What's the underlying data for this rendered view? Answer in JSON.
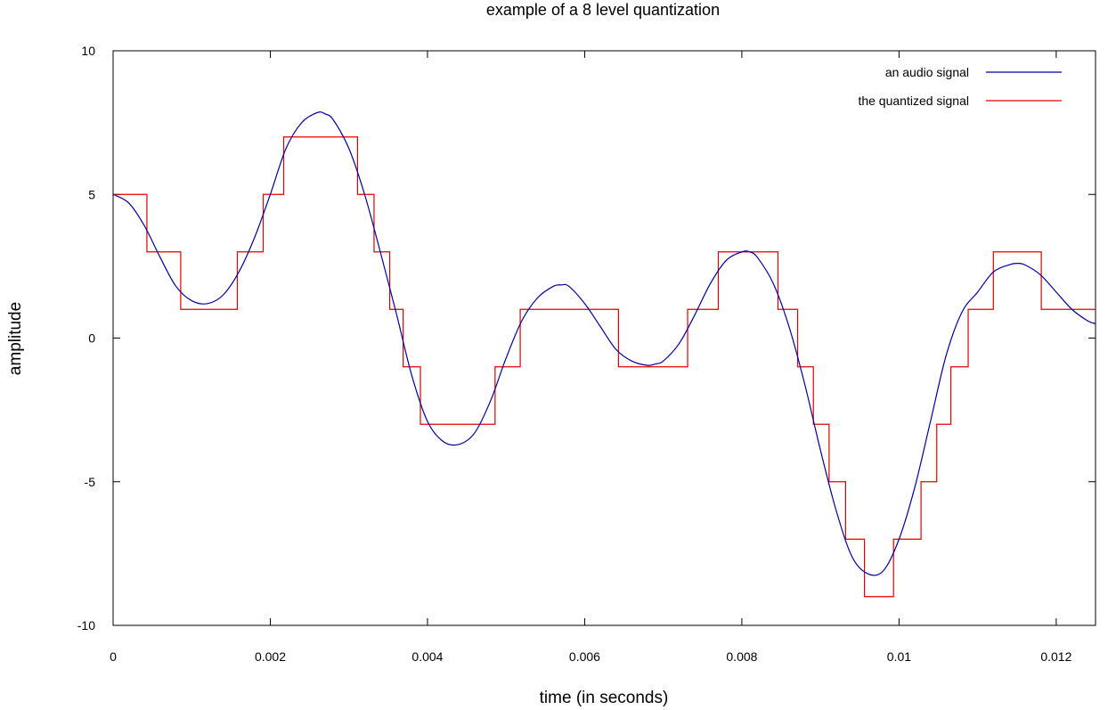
{
  "chart_data": {
    "type": "line",
    "title": "example of a 8 level quantization",
    "xlabel": "time (in seconds)",
    "ylabel": "amplitude",
    "xlim": [
      0,
      0.0125
    ],
    "ylim": [
      -10,
      10
    ],
    "xticks": [
      0,
      0.002,
      0.004,
      0.006,
      0.008,
      0.01,
      0.012
    ],
    "xtick_labels": [
      "0",
      "0.002",
      "0.004",
      "0.006",
      "0.008",
      "0.01",
      "0.012"
    ],
    "yticks": [
      -10,
      -5,
      0,
      5,
      10
    ],
    "ytick_labels": [
      "-10",
      "-5",
      "0",
      "5",
      "10"
    ],
    "grid": false,
    "legend_position": "top-right",
    "series": [
      {
        "name": "an audio signal",
        "color": "#0000a0",
        "style": "line",
        "x": [
          0,
          0.0002,
          0.0004,
          0.0006,
          0.0008,
          0.001,
          0.0012,
          0.0014,
          0.0016,
          0.0018,
          0.002,
          0.0022,
          0.0024,
          0.0026,
          0.0027,
          0.0028,
          0.003,
          0.0032,
          0.0034,
          0.0036,
          0.0038,
          0.004,
          0.0042,
          0.0044,
          0.0046,
          0.0048,
          0.005,
          0.0052,
          0.0054,
          0.0056,
          0.0057,
          0.0058,
          0.006,
          0.0062,
          0.0064,
          0.0066,
          0.0068,
          0.0069,
          0.007,
          0.0072,
          0.0074,
          0.0076,
          0.0078,
          0.008,
          0.0081,
          0.0082,
          0.0084,
          0.0086,
          0.0088,
          0.009,
          0.0092,
          0.0094,
          0.0096,
          0.0098,
          0.01,
          0.0102,
          0.0104,
          0.0106,
          0.0108,
          0.011,
          0.0112,
          0.0114,
          0.0115,
          0.0116,
          0.0118,
          0.012,
          0.0122,
          0.0124,
          0.0125
        ],
        "y": [
          5.0,
          4.7,
          3.9,
          2.8,
          1.8,
          1.3,
          1.2,
          1.5,
          2.3,
          3.5,
          5.0,
          6.6,
          7.5,
          7.85,
          7.8,
          7.6,
          6.6,
          5.0,
          3.0,
          0.9,
          -1.3,
          -2.9,
          -3.6,
          -3.7,
          -3.3,
          -2.2,
          -0.7,
          0.6,
          1.4,
          1.8,
          1.85,
          1.8,
          1.2,
          0.4,
          -0.4,
          -0.8,
          -0.95,
          -0.9,
          -0.8,
          -0.2,
          0.8,
          1.9,
          2.7,
          3.0,
          3.0,
          2.8,
          1.9,
          0.4,
          -1.6,
          -3.9,
          -6.0,
          -7.6,
          -8.2,
          -8.1,
          -7.0,
          -5.2,
          -2.9,
          -0.6,
          0.9,
          1.6,
          2.3,
          2.55,
          2.6,
          2.55,
          2.2,
          1.6,
          1.0,
          0.6,
          0.5
        ]
      },
      {
        "name": "the quantized signal",
        "color": "#e00000",
        "style": "step",
        "x": [
          0,
          0.00043,
          0.00086,
          0.00158,
          0.00191,
          0.00217,
          0.00311,
          0.00332,
          0.00352,
          0.00369,
          0.00391,
          0.00486,
          0.00518,
          0.00643,
          0.00731,
          0.0077,
          0.00846,
          0.00871,
          0.00891,
          0.00911,
          0.00932,
          0.00956,
          0.00993,
          0.01028,
          0.01048,
          0.01066,
          0.01088,
          0.0112,
          0.01181,
          0.0125
        ],
        "y": [
          5,
          3,
          1,
          3,
          5,
          7,
          5,
          3,
          1,
          -1,
          -3,
          -1,
          1,
          -1,
          1,
          3,
          1,
          -1,
          -3,
          -5,
          -7,
          -9,
          -7,
          -5,
          -3,
          -1,
          1,
          3,
          1,
          1
        ]
      }
    ]
  }
}
